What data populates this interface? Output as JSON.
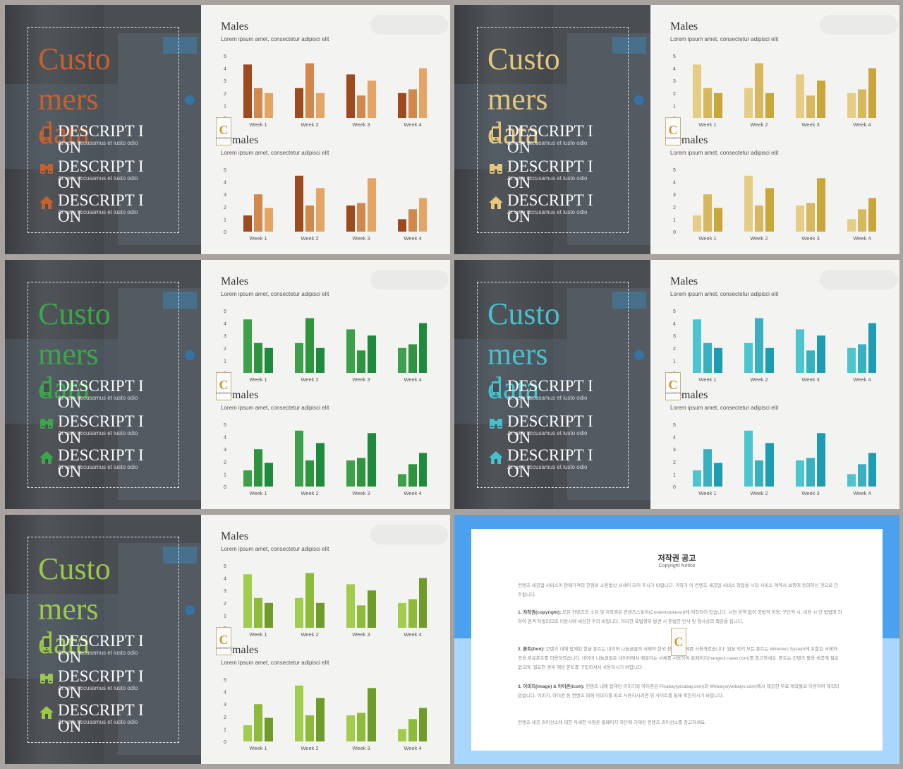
{
  "slides": [
    {
      "theme": {
        "light": "#d1884c",
        "mid": "#c06a2e",
        "dark": "#9e4a1f",
        "accent": "#c8602c",
        "bars": [
          "#9e4a1f",
          "#d1884c",
          "#e4a564"
        ]
      }
    },
    {
      "theme": {
        "light": "#e6cd85",
        "mid": "#d8b85e",
        "dark": "#c9a63a",
        "accent": "#e2c77c",
        "bars": [
          "#e6cd85",
          "#d8b85e",
          "#c9a63a"
        ]
      }
    },
    {
      "theme": {
        "light": "#3ea04a",
        "mid": "#2f9340",
        "dark": "#1e8a3c",
        "accent": "#3aa84a",
        "bars": [
          "#3ea04a",
          "#2f9340",
          "#1e8a3c"
        ]
      }
    },
    {
      "theme": {
        "light": "#4ec4cf",
        "mid": "#38b0c0",
        "dark": "#1e9cb4",
        "accent": "#45c1cd",
        "bars": [
          "#4ec4cf",
          "#38b0c0",
          "#1e9cb4"
        ]
      }
    },
    {
      "theme": {
        "light": "#a1cc4e",
        "mid": "#8cbb3c",
        "dark": "#6f9c28",
        "accent": "#9cc84a",
        "bars": [
          "#a1cc4e",
          "#8cbb3c",
          "#6f9c28"
        ]
      }
    }
  ],
  "content": {
    "big_lines": [
      "Custo",
      "mers",
      "data"
    ],
    "items": [
      {
        "title": "DESCRIPT ION",
        "text": "At vero accusamus et iusto odio",
        "icon": "phone-icon"
      },
      {
        "title": "DESCRIPT ION",
        "text": "At vero accusamus et iusto odio",
        "icon": "binoculars-icon"
      },
      {
        "title": "DESCRIPT ION",
        "text": "At vero accusamus et iusto odio",
        "icon": "home-icon"
      }
    ],
    "logo": {
      "letter": "C",
      "caption": "CONTENTS"
    },
    "males": {
      "title": "Males",
      "subtitle": "Lorem ipsum amet, consectetur adipisci elit"
    },
    "females": {
      "title": "Females",
      "subtitle": "Lorem ipsum amet, consectetur adipisci elit"
    }
  },
  "chart_data": [
    {
      "type": "bar",
      "title": "Males",
      "categories": [
        "Week 1",
        "Week 2",
        "Week 3",
        "Week 4"
      ],
      "series": [
        {
          "values": [
            4.3,
            2.4,
            3.5,
            2.0
          ]
        },
        {
          "values": [
            2.4,
            4.4,
            1.8,
            2.3
          ]
        },
        {
          "values": [
            2.0,
            2.0,
            3.0,
            4.0
          ]
        }
      ],
      "yticks": [
        "0",
        "1",
        "2",
        "3",
        "4",
        "5"
      ],
      "ylim": [
        0,
        5
      ]
    },
    {
      "type": "bar",
      "title": "Females",
      "categories": [
        "Week 1",
        "Week 2",
        "Week 3",
        "Week 4"
      ],
      "series": [
        {
          "values": [
            1.3,
            4.5,
            2.1,
            1.0
          ]
        },
        {
          "values": [
            3.0,
            2.1,
            2.3,
            1.8
          ]
        },
        {
          "values": [
            1.9,
            3.5,
            4.3,
            2.7
          ]
        }
      ],
      "yticks": [
        "0",
        "1",
        "2",
        "3",
        "4",
        "5"
      ],
      "ylim": [
        0,
        5
      ]
    }
  ],
  "notice": {
    "title": "저작권 공고",
    "subtitle": "Copyright Notice",
    "intro": "컨텐츠 세공업 서비스이 판매가격의 한정비 소환법상 서세이 되어 주시기 바랍니다. 귀하가 이 컨텐츠 세공업 서비스 작업을 시작 서비스 계약서 보증에 동의하신 것으로 간주됩니다.",
    "p1_label": "1. 저작권(copyright):",
    "p1": "모든 컨텐츠의 소유 및 저작권은 컨텐츠스토어(Contentstokeout)에 저작되어 있습니다. 시연 용역 없이 공법적 이용, 구단적 시, 비용 시 단 법법에 의하여 엄격 처벌되므로 이용시에 세심한 주의 바랍니다. 이러한 표법행위 발견 시 준법한 민사 및 형사상의 책임을 집니다.",
    "p2_label": "2. 폰트(font):",
    "p2": "컨텐츠 내에 탑재된 한글 폰트는 네이버 나눔글꼴의 서체와 한국 정부의 서체를 사용하였습니다. 원본 외의 모든 폰트는 Windows System에 포함된 서체와 공용 무료폰트를 이용하였습니다. 네이버 나눔글꼴은 네이버에서 배포하는 서체를 사용하여 홈페이지(hangeul.naver.com)를 참고하세요. 폰트는 컨텐츠 활용 세공에 필요 없으며, 필요한 경우 해당 폰트를 구입하셔서 사용하시기 바랍니다.",
    "p3_label": "3. 이미지(image) & 아이콘(icon):",
    "p3": "컨텐츠 내에 탑재된 이미지와 아이콘은 Pixabay(pixabay.com)와 Webalys(webalys.com)에서 제공한 무료 제작물로 이용하여 제작되었습니다. 이미지, 아이콘 등 컨텐츠 외에 이미지를 따로 사용하시려면 위 사이트를 통해 확인하시기 바랍니다.",
    "outro": "컨텐츠 세공 라이선스에 대한 자세한 사항은 홈페이지 하단에 기재된 컨텐츠 라이선스를 참고하세요.",
    "logo": "C"
  }
}
